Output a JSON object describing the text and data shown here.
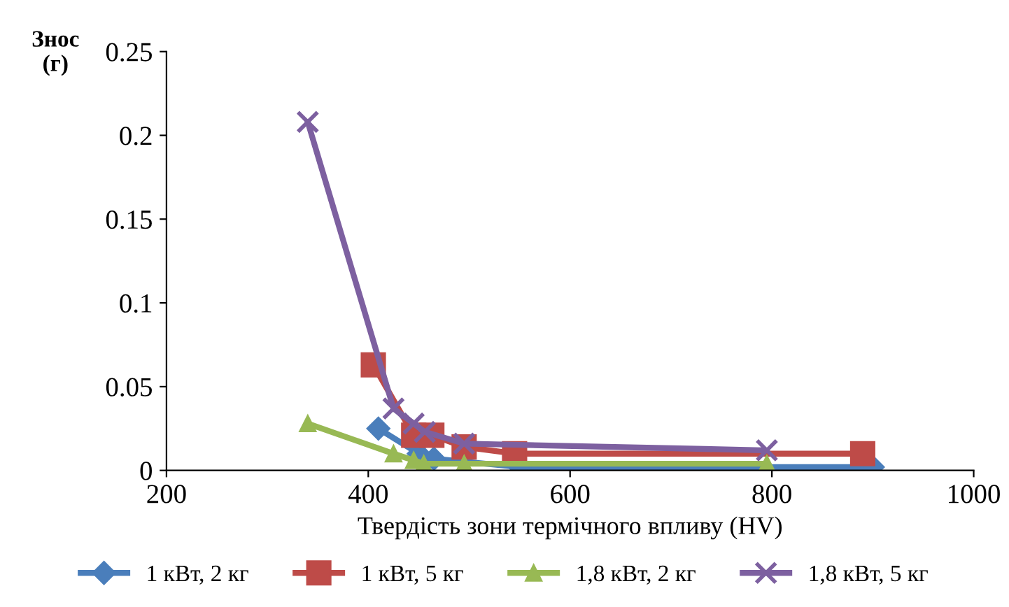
{
  "chart_data": {
    "type": "line",
    "xlabel": "Твердість зони термічного впливу (HV)",
    "ylabel": "Знос\n(г)",
    "xlim": [
      200,
      1000
    ],
    "xticks": [
      200,
      400,
      600,
      800,
      1000
    ],
    "ylim": [
      0,
      0.25
    ],
    "yticks": [
      0,
      0.05,
      0.1,
      0.15,
      0.2,
      0.25
    ],
    "grid": false,
    "legend": "bottom",
    "line_style": "solid",
    "series": [
      {
        "name": "1 кВт, 2 кг",
        "color": "#4a7ebb",
        "marker": "diamond",
        "x": [
          410,
          450,
          465,
          550,
          900
        ],
        "values": [
          0.025,
          0.01,
          0.007,
          0.002,
          0.002
        ]
      },
      {
        "name": "1 кВт, 5 кг",
        "color": "#be4b48",
        "marker": "square",
        "x": [
          405,
          445,
          463,
          495,
          545,
          890
        ],
        "values": [
          0.063,
          0.021,
          0.021,
          0.014,
          0.01,
          0.01
        ]
      },
      {
        "name": "1,8 кВт, 2 кг",
        "color": "#98b954",
        "marker": "triangle",
        "x": [
          340,
          425,
          445,
          455,
          495,
          795
        ],
        "values": [
          0.028,
          0.01,
          0.006,
          0.004,
          0.004,
          0.004
        ]
      },
      {
        "name": "1,8 кВт, 5 кг",
        "color": "#7d60a0",
        "marker": "cross",
        "x": [
          340,
          425,
          445,
          456,
          495,
          795
        ],
        "values": [
          0.208,
          0.037,
          0.028,
          0.023,
          0.016,
          0.012
        ]
      }
    ]
  }
}
